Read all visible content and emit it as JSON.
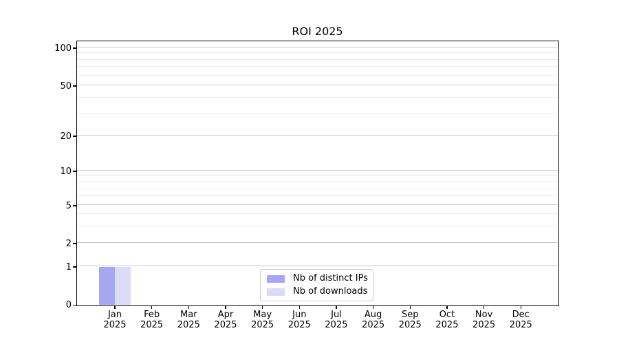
{
  "chart_data": {
    "type": "bar",
    "title": "ROI 2025",
    "categories": [
      "Jan 2025",
      "Feb 2025",
      "Mar 2025",
      "Apr 2025",
      "May 2025",
      "Jun 2025",
      "Jul 2025",
      "Aug 2025",
      "Sep 2025",
      "Oct 2025",
      "Nov 2025",
      "Dec 2025"
    ],
    "series": [
      {
        "name": "Nb of distinct IPs",
        "color": "#a6a6f2",
        "values": [
          1,
          0,
          0,
          0,
          0,
          0,
          0,
          0,
          0,
          0,
          0,
          0
        ]
      },
      {
        "name": "Nb of downloads",
        "color": "#dcdcf7",
        "values": [
          1,
          0,
          0,
          0,
          0,
          0,
          0,
          0,
          0,
          0,
          0,
          0
        ]
      }
    ],
    "xlabel": "",
    "ylabel": "",
    "yscale": "log",
    "yticks": [
      0,
      1,
      2,
      5,
      10,
      20,
      50,
      100
    ],
    "ylim": [
      0,
      115
    ],
    "grid": {
      "major": true,
      "minor": true
    },
    "legend": {
      "position": "lower center inside plot"
    }
  },
  "colors": {
    "background": "#ffffff",
    "bar_distinct_ips": "#a6a6f2",
    "bar_downloads": "#dcdcf7",
    "spine": "#000000",
    "grid_major": "#c9c9c9",
    "grid_minor": "#ececec",
    "legend_border": "#cccccc",
    "text": "#000000"
  }
}
